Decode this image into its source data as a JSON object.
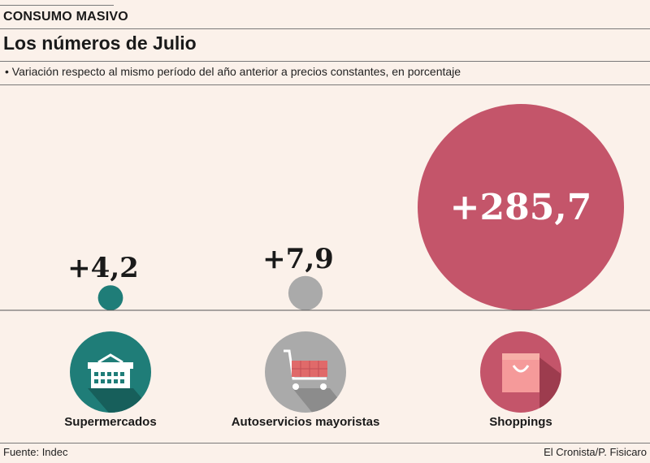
{
  "header": {
    "kicker": "CONSUMO MASIVO",
    "title": "Los números de Julio",
    "subtitle": "• Variación respecto al mismo período del año anterior a precios constantes, en porcentaje"
  },
  "chart_data": {
    "type": "bubble",
    "categories": [
      "Supermercados",
      "Autoservicios mayoristas",
      "Shoppings"
    ],
    "values": [
      4.2,
      7.9,
      285.7
    ],
    "value_labels": [
      "+4,2",
      "+7,9",
      "+285,7"
    ],
    "colors": [
      "#1f7d78",
      "#aaaaaa",
      "#c4556a"
    ],
    "icons": [
      "shopping-basket-icon",
      "shopping-cart-icon",
      "shopping-bag-icon"
    ]
  },
  "footer": {
    "source": "Fuente: Indec",
    "credit": "El Cronista/P. Fisicaro"
  }
}
